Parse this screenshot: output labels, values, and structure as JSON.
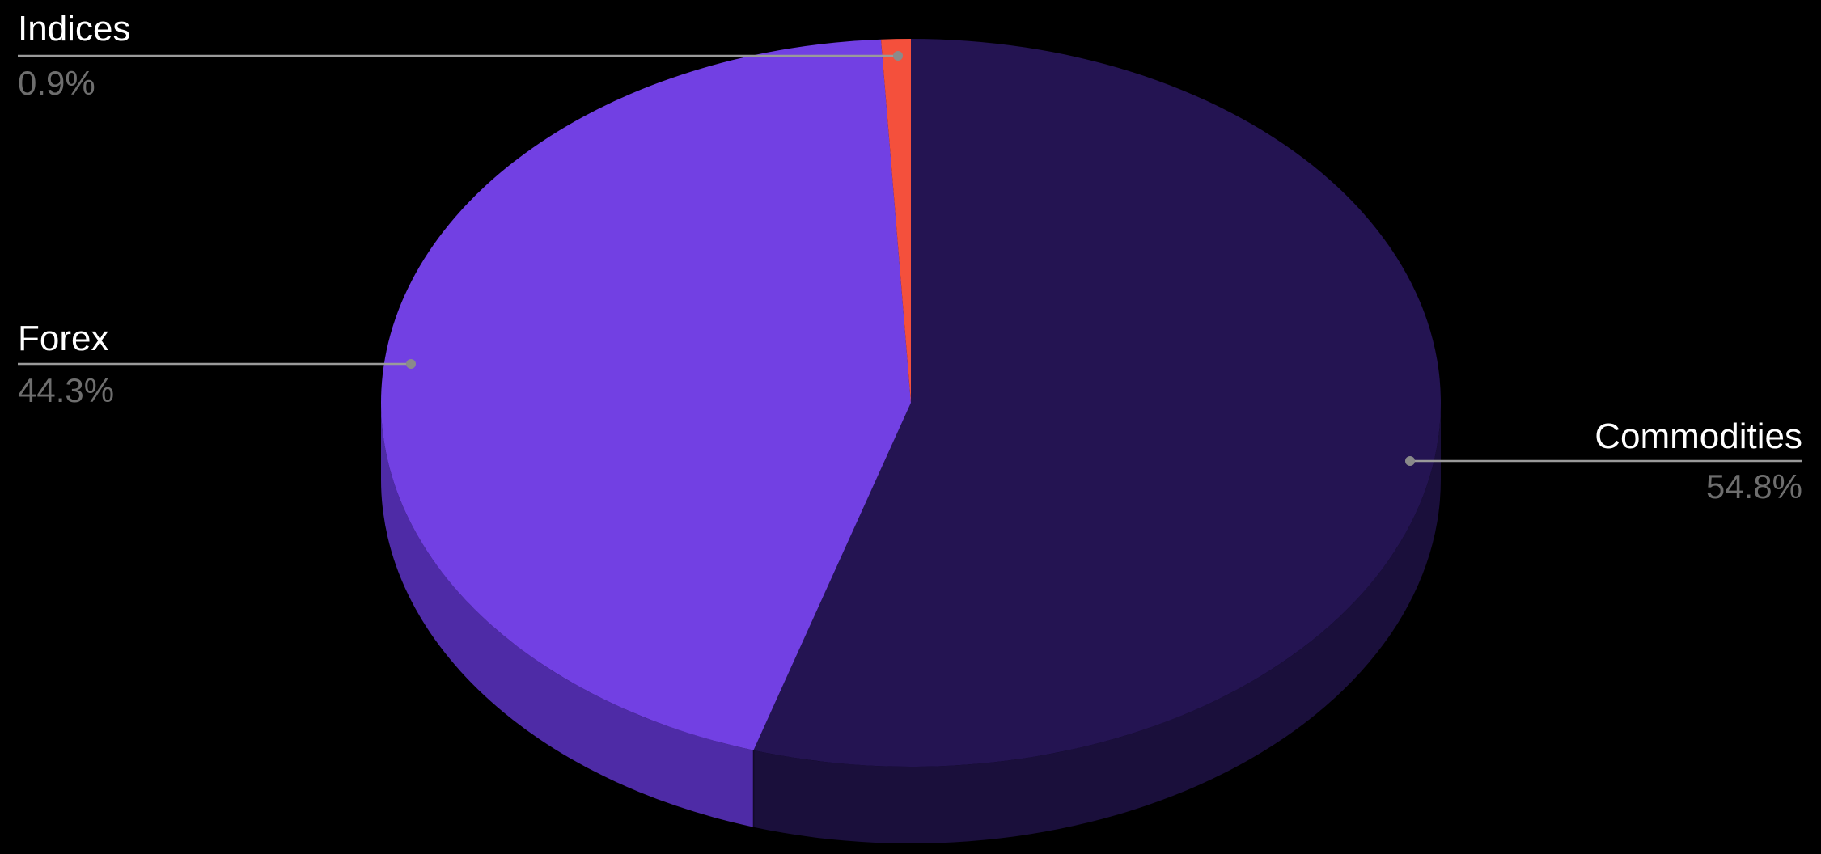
{
  "chart_data": {
    "type": "pie",
    "style": "3d",
    "start_at": "top",
    "direction": "clockwise",
    "slices": [
      {
        "label": "Commodities",
        "value": 54.8,
        "value_label": "54.8%",
        "color": "#241452",
        "side_color": "#1a0f3b",
        "label_position": "right"
      },
      {
        "label": "Forex",
        "value": 44.3,
        "value_label": "44.3%",
        "color": "#7240e3",
        "side_color": "#4e2ba6",
        "label_position": "left"
      },
      {
        "label": "Indices",
        "value": 0.9,
        "value_label": "0.9%",
        "color": "#f4503c",
        "side_color": "#b33a2c",
        "label_position": "top-left"
      }
    ],
    "legend": "none",
    "background": "#000000"
  }
}
